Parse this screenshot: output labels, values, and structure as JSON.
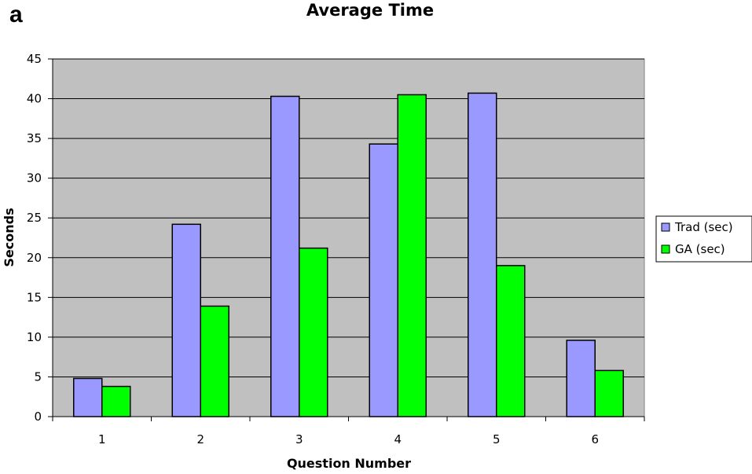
{
  "panel_label": "a",
  "chart_data": {
    "type": "bar",
    "title": "Average Time",
    "xlabel": "Question Number",
    "ylabel": "Seconds",
    "categories": [
      "1",
      "2",
      "3",
      "4",
      "5",
      "6"
    ],
    "series": [
      {
        "name": "Trad (sec)",
        "color": "#9999ff",
        "values": [
          4.8,
          24.2,
          40.3,
          34.3,
          40.7,
          9.6
        ]
      },
      {
        "name": "GA (sec)",
        "color": "#00ff00",
        "values": [
          3.8,
          13.9,
          21.2,
          40.5,
          19.0,
          5.8
        ]
      }
    ],
    "ylim": [
      0,
      45
    ],
    "yticks": [
      0,
      5,
      10,
      15,
      20,
      25,
      30,
      35,
      40,
      45
    ],
    "grid": true,
    "plot_background": "#c0c0c0",
    "legend_position": "right"
  }
}
